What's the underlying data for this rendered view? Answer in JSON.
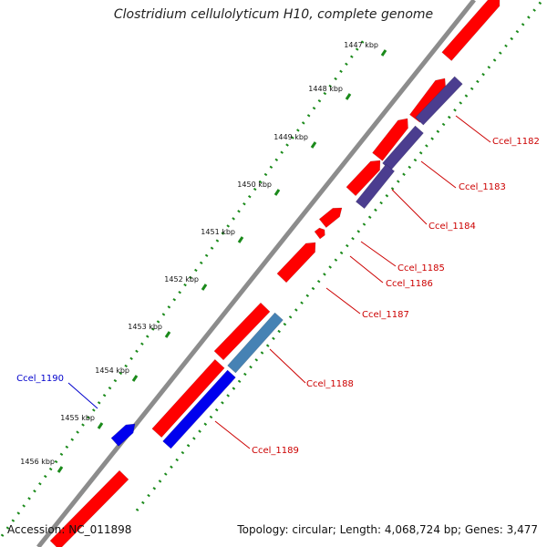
{
  "title": "Clostridium cellulolyticum H10, complete genome",
  "accession_text": "Accession: NC_011898",
  "summary_text": "Topology: circular; Length: 4,068,724 bp; Genes: 3,477",
  "colors": {
    "backbone": "#8c8c8c",
    "forward_cds": "#ff0000",
    "reverse_cds": "#ff0000",
    "forward_dark": "#4b3d8f",
    "steel": "#4682b4",
    "blue": "#0000ee",
    "dots": "#1b8a1b",
    "label_red": "#cc0000",
    "label_blue": "#0000cc"
  },
  "ruler": {
    "ticks": [
      {
        "label": "1447 kbp"
      },
      {
        "label": "1448 kbp"
      },
      {
        "label": "1449 kbp"
      },
      {
        "label": "1450 kbp"
      },
      {
        "label": "1451 kbp"
      },
      {
        "label": "1452 kbp"
      },
      {
        "label": "1453 kbp"
      },
      {
        "label": "1454 kbp"
      },
      {
        "label": "1455 kbp"
      },
      {
        "label": "1456 kbp"
      }
    ]
  },
  "gene_labels": [
    {
      "name": "Ccel_1182"
    },
    {
      "name": "Ccel_1183"
    },
    {
      "name": "Ccel_1184"
    },
    {
      "name": "Ccel_1185"
    },
    {
      "name": "Ccel_1186"
    },
    {
      "name": "Ccel_1187"
    },
    {
      "name": "Ccel_1188"
    },
    {
      "name": "Ccel_1189"
    },
    {
      "name": "Ccel_1190"
    }
  ]
}
